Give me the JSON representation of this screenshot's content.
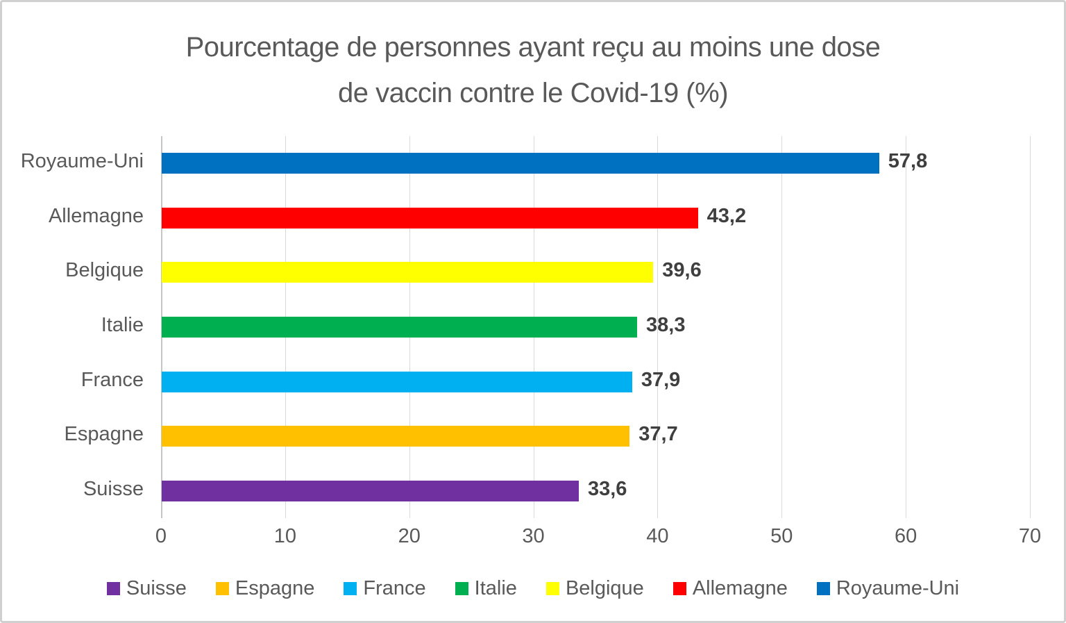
{
  "chart_data": {
    "type": "bar",
    "orientation": "horizontal",
    "title": "Pourcentage de personnes ayant reçu au moins une dose de vaccin contre le Covid-19 (%)",
    "title_lines": [
      "Pourcentage de personnes ayant reçu au moins une dose",
      "de vaccin contre le Covid-19 (%)"
    ],
    "categories": [
      "Royaume-Uni",
      "Allemagne",
      "Belgique",
      "Italie",
      "France",
      "Espagne",
      "Suisse"
    ],
    "values": [
      57.8,
      43.2,
      39.6,
      38.3,
      37.9,
      37.7,
      33.6
    ],
    "value_labels": [
      "57,8",
      "43,2",
      "39,6",
      "38,3",
      "37,9",
      "37,7",
      "33,6"
    ],
    "bar_colors": [
      "#0070c0",
      "#ff0000",
      "#ffff00",
      "#00b050",
      "#00b0f0",
      "#ffc000",
      "#7030a0"
    ],
    "xlabel": "",
    "ylabel": "",
    "xlim": [
      0,
      70
    ],
    "x_ticks": [
      0,
      10,
      20,
      30,
      40,
      50,
      60,
      70
    ],
    "grid": true,
    "legend": {
      "position": "bottom",
      "items": [
        {
          "label": "Suisse",
          "color": "#7030a0"
        },
        {
          "label": "Espagne",
          "color": "#ffc000"
        },
        {
          "label": "France",
          "color": "#00b0f0"
        },
        {
          "label": "Italie",
          "color": "#00b050"
        },
        {
          "label": "Belgique",
          "color": "#ffff00"
        },
        {
          "label": "Allemagne",
          "color": "#ff0000"
        },
        {
          "label": "Royaume-Uni",
          "color": "#0070c0"
        }
      ]
    },
    "style": {
      "title_color": "#595959",
      "axis_text_color": "#595959",
      "value_label_color": "#3f3f3f",
      "gridline_color": "#d9d9d9",
      "background_color": "#ffffff"
    }
  }
}
